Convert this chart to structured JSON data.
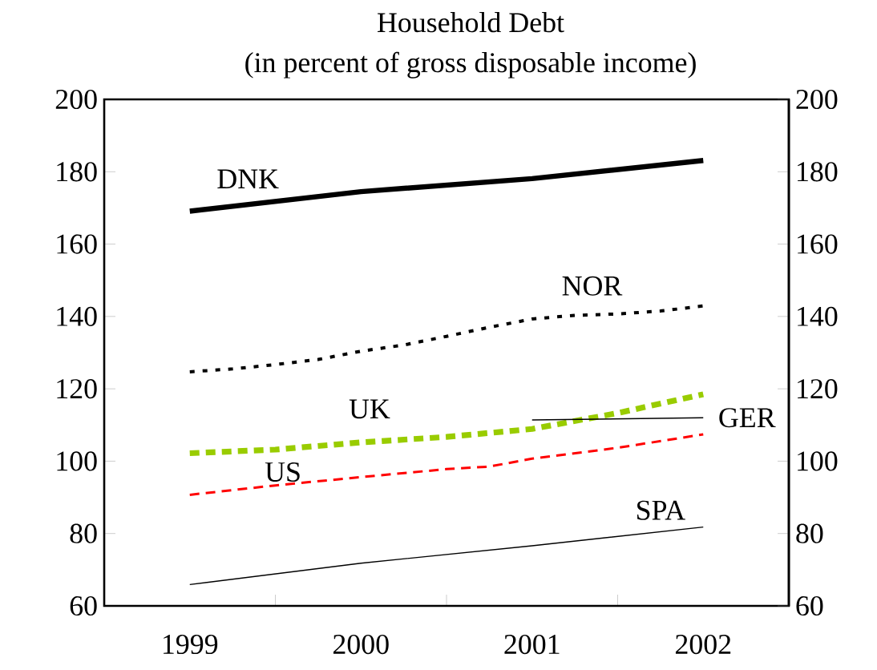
{
  "chart_data": {
    "type": "line",
    "title": "Household Debt",
    "subtitle": "(in percent of gross disposable income)",
    "xlim": [
      1999,
      2003
    ],
    "xticks": [
      {
        "value": 1999.5,
        "label": "1999"
      },
      {
        "value": 2000,
        "label": null
      },
      {
        "value": 2000.5,
        "label": "2000"
      },
      {
        "value": 2001,
        "label": null
      },
      {
        "value": 2001.5,
        "label": "2001"
      },
      {
        "value": 2002,
        "label": null
      },
      {
        "value": 2002.5,
        "label": "2002"
      }
    ],
    "ylim": [
      60,
      200
    ],
    "yticks": [
      60,
      80,
      100,
      120,
      140,
      160,
      180,
      200
    ],
    "y2lim": [
      60,
      200
    ],
    "y2ticks": [
      60,
      80,
      100,
      120,
      140,
      160,
      180,
      200
    ],
    "grid": false,
    "legend": false,
    "marker": "none",
    "series": [
      {
        "name": "DNK",
        "color": "#000000",
        "line_style": "solid",
        "x": [
          1999.5,
          2000.5,
          2001.5,
          2002.5
        ],
        "values": [
          169.1,
          174.5,
          178.1,
          183.1
        ]
      },
      {
        "name": "NOR",
        "color": "#000000",
        "line_style": "dotted",
        "x": [
          1999.5,
          1999.75,
          2000,
          2000.25,
          2000.5,
          2000.75,
          2001,
          2001.25,
          2001.5,
          2001.75,
          2002,
          2002.25,
          2002.5
        ],
        "values": [
          124.7,
          125.5,
          126.7,
          128.1,
          130.4,
          132.1,
          134.5,
          137,
          139.3,
          140.3,
          140.7,
          141.5,
          142.9
        ]
      },
      {
        "name": "UK",
        "color": "#99cc00",
        "line_style": "dashed",
        "x": [
          1999.5,
          2000,
          2000.5,
          2001,
          2001.5,
          2002,
          2002.5
        ],
        "values": [
          102.2,
          103.2,
          105.2,
          106.7,
          108.9,
          113.3,
          118.5
        ]
      },
      {
        "name": "US",
        "color": "#ff0000",
        "line_style": "dashed",
        "x": [
          1999.5,
          2000,
          2000.5,
          2001,
          2001.25,
          2001.5,
          2002,
          2002.5
        ],
        "values": [
          90.7,
          93.3,
          95.6,
          97.8,
          98.5,
          100.7,
          103.7,
          107.4
        ]
      },
      {
        "name": "GER",
        "color": "#000000",
        "line_style": "solid",
        "x": [
          2001.5,
          2002,
          2002.5
        ],
        "values": [
          111.4,
          111.7,
          112.0
        ]
      },
      {
        "name": "SPA",
        "color": "#000000",
        "line_style": "solid",
        "x": [
          1999.5,
          2000.5,
          2001.5,
          2002.5
        ],
        "values": [
          65.9,
          71.8,
          76.6,
          81.8
        ]
      }
    ]
  }
}
